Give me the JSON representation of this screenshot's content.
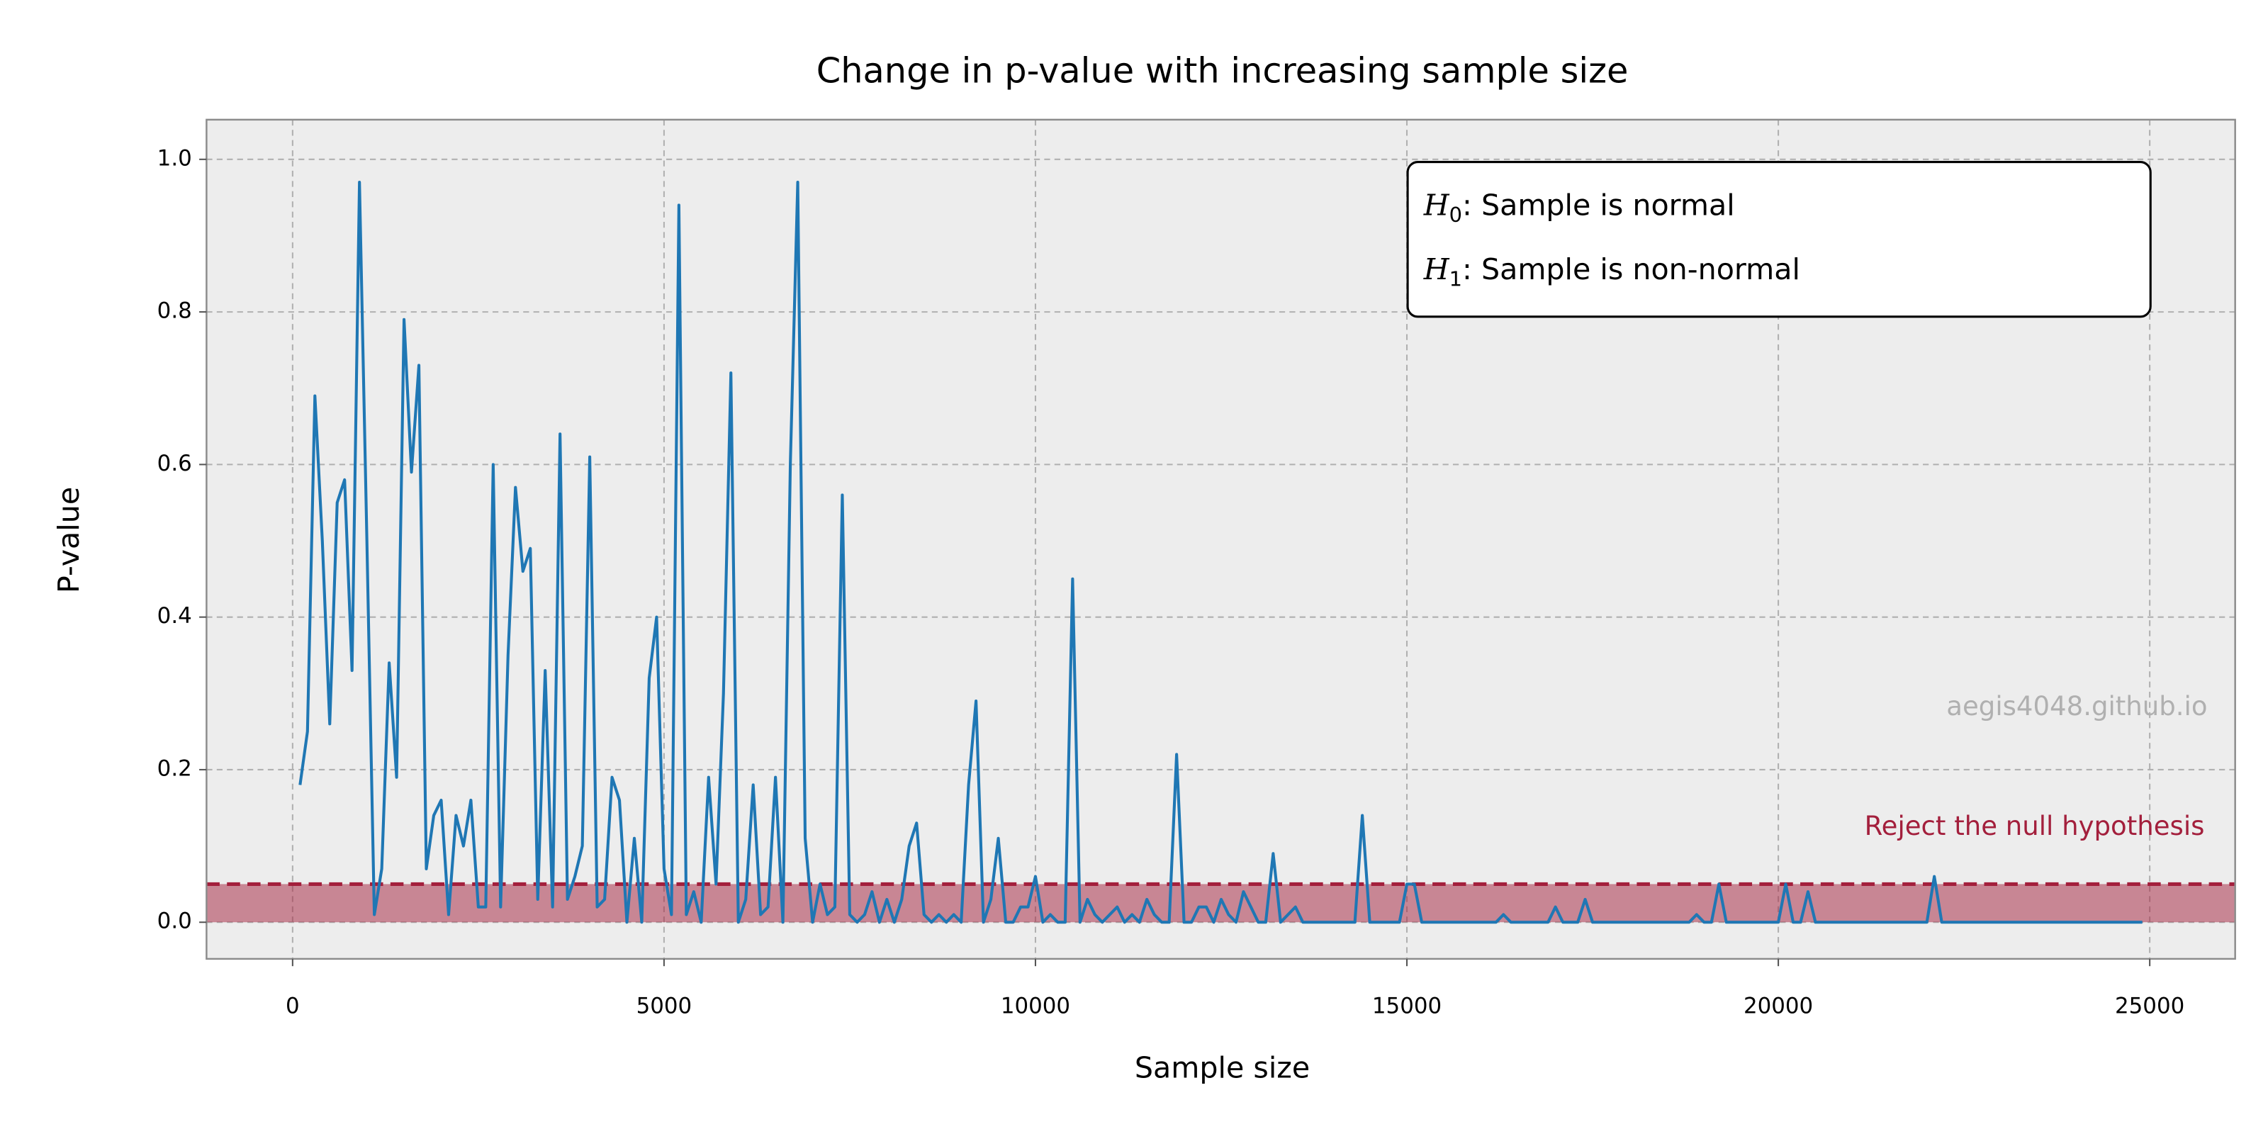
{
  "chart_data": {
    "type": "line",
    "title": "Change in p-value with increasing sample size",
    "x_label": "Sample size",
    "y_label": "P-value",
    "color": "#1f77b4",
    "grid": true,
    "xlim": [
      -1159,
      26150
    ],
    "ylim": [
      -0.048,
      1.052
    ],
    "xticks": [
      0,
      5000,
      10000,
      15000,
      20000,
      25000
    ],
    "yticks": [
      {
        "value": 0,
        "label": "0.0"
      },
      0.2,
      0.4,
      0.6,
      0.8,
      {
        "value": 1,
        "label": "1.0"
      }
    ],
    "threshold": 0.05,
    "threshold_color": "#a31f3c",
    "threshold_label": "Reject the null hypothesis",
    "watermark": "aegis4048.github.io",
    "hypotheses": [
      {
        "symbol": "H",
        "subscript": "0",
        "text": ": Sample is normal"
      },
      {
        "symbol": "H",
        "subscript": "1",
        "text": ": Sample is non-normal"
      }
    ],
    "x": [
      100,
      200,
      300,
      400,
      500,
      600,
      700,
      800,
      900,
      1000,
      1100,
      1200,
      1300,
      1400,
      1500,
      1600,
      1700,
      1800,
      1900,
      2000,
      2100,
      2200,
      2300,
      2400,
      2500,
      2600,
      2700,
      2800,
      2900,
      3000,
      3100,
      3200,
      3300,
      3400,
      3500,
      3600,
      3700,
      3800,
      3900,
      4000,
      4100,
      4200,
      4300,
      4400,
      4500,
      4600,
      4700,
      4800,
      4900,
      5000,
      5100,
      5200,
      5300,
      5400,
      5500,
      5600,
      5700,
      5800,
      5900,
      6000,
      6100,
      6200,
      6300,
      6400,
      6500,
      6600,
      6700,
      6800,
      6900,
      7000,
      7100,
      7200,
      7300,
      7400,
      7500,
      7600,
      7700,
      7800,
      7900,
      8000,
      8100,
      8200,
      8300,
      8400,
      8500,
      8600,
      8700,
      8800,
      8900,
      9000,
      9100,
      9200,
      9300,
      9400,
      9500,
      9600,
      9700,
      9800,
      9900,
      10000,
      10100,
      10200,
      10300,
      10400,
      10500,
      10600,
      10700,
      10800,
      10900,
      11000,
      11100,
      11200,
      11300,
      11400,
      11500,
      11600,
      11700,
      11800,
      11900,
      12000,
      12100,
      12200,
      12300,
      12400,
      12500,
      12600,
      12700,
      12800,
      12900,
      13000,
      13100,
      13200,
      13300,
      13400,
      13500,
      13600,
      13700,
      13800,
      13900,
      14000,
      14100,
      14200,
      14300,
      14400,
      14500,
      14600,
      14700,
      14800,
      14900,
      15000,
      15100,
      15200,
      15300,
      15400,
      15500,
      15600,
      15700,
      15800,
      15900,
      16000,
      16100,
      16200,
      16300,
      16400,
      16500,
      16600,
      16700,
      16800,
      16900,
      17000,
      17100,
      17200,
      17300,
      17400,
      17500,
      17600,
      17700,
      17800,
      17900,
      18000,
      18100,
      18200,
      18300,
      18400,
      18500,
      18600,
      18700,
      18800,
      18900,
      19000,
      19100,
      19200,
      19300,
      19400,
      19500,
      19600,
      19700,
      19800,
      19900,
      20000,
      20100,
      20200,
      20300,
      20400,
      20500,
      20600,
      20700,
      20800,
      20900,
      21000,
      21100,
      21200,
      21300,
      21400,
      21500,
      21600,
      21700,
      21800,
      21900,
      22000,
      22100,
      22200,
      22300,
      22400,
      22500,
      22600,
      22700,
      22800,
      22900,
      23000,
      23100,
      23200,
      23300,
      23400,
      23500,
      23600,
      23700,
      23800,
      23900,
      24000,
      24100,
      24200,
      24300,
      24400,
      24500,
      24600,
      24700,
      24800,
      24900
    ],
    "values": [
      0.18,
      0.25,
      0.69,
      0.5,
      0.26,
      0.55,
      0.58,
      0.33,
      0.97,
      0.5,
      0.01,
      0.07,
      0.34,
      0.19,
      0.79,
      0.59,
      0.73,
      0.07,
      0.14,
      0.16,
      0.01,
      0.14,
      0.1,
      0.16,
      0.02,
      0.02,
      0.6,
      0.02,
      0.35,
      0.57,
      0.46,
      0.49,
      0.03,
      0.33,
      0.02,
      0.64,
      0.03,
      0.06,
      0.1,
      0.61,
      0.02,
      0.03,
      0.19,
      0.16,
      0,
      0.11,
      0,
      0.32,
      0.4,
      0.07,
      0.01,
      0.94,
      0.01,
      0.04,
      0,
      0.19,
      0.05,
      0.3,
      0.72,
      0,
      0.03,
      0.18,
      0.01,
      0.02,
      0.19,
      0,
      0.6,
      0.97,
      0.11,
      0,
      0.05,
      0.01,
      0.02,
      0.56,
      0.01,
      0,
      0.01,
      0.04,
      0,
      0.03,
      0,
      0.03,
      0.1,
      0.13,
      0.01,
      0,
      0.01,
      0,
      0.01,
      0,
      0.18,
      0.29,
      0,
      0.03,
      0.11,
      0,
      0,
      0.02,
      0.02,
      0.06,
      0,
      0.01,
      0,
      0,
      0.45,
      0,
      0.03,
      0.01,
      0,
      0.01,
      0.02,
      0,
      0.01,
      0,
      0.03,
      0.01,
      0,
      0,
      0.22,
      0,
      0,
      0.02,
      0.02,
      0,
      0.03,
      0.01,
      0,
      0.04,
      0.02,
      0,
      0,
      0.09,
      0,
      0.01,
      0.02,
      0,
      0,
      0,
      0,
      0,
      0,
      0,
      0,
      0.14,
      0,
      0,
      0,
      0,
      0,
      0.05,
      0.05,
      0,
      0,
      0,
      0,
      0,
      0,
      0,
      0,
      0,
      0,
      0,
      0.01,
      0,
      0,
      0,
      0,
      0,
      0,
      0.02,
      0,
      0,
      0,
      0.03,
      0,
      0,
      0,
      0,
      0,
      0,
      0,
      0,
      0,
      0,
      0,
      0,
      0,
      0,
      0.01,
      0,
      0,
      0.05,
      0,
      0,
      0,
      0,
      0,
      0,
      0,
      0,
      0.05,
      0,
      0,
      0.04,
      0,
      0,
      0,
      0,
      0,
      0,
      0,
      0,
      0,
      0,
      0,
      0,
      0,
      0,
      0,
      0,
      0.06,
      0,
      0,
      0,
      0,
      0,
      0,
      0,
      0,
      0,
      0,
      0,
      0,
      0,
      0,
      0,
      0,
      0,
      0,
      0,
      0,
      0,
      0,
      0,
      0,
      0,
      0,
      0,
      0
    ]
  }
}
